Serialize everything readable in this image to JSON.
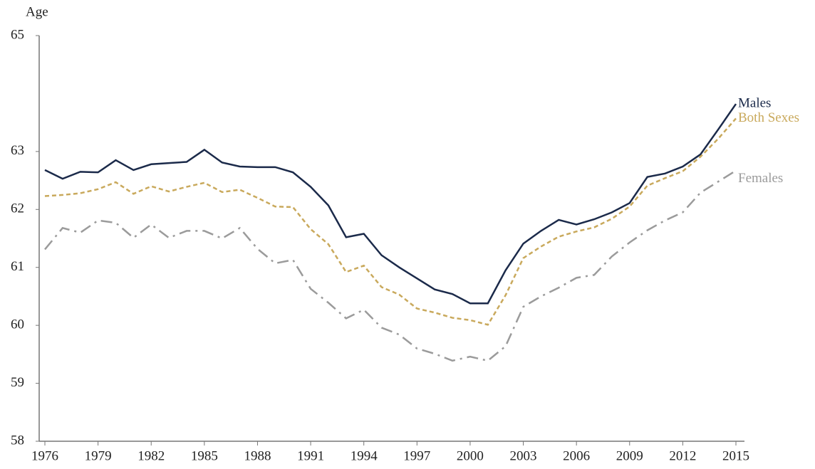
{
  "chart_data": {
    "type": "line",
    "y_label": "Age",
    "x": [
      1976,
      1977,
      1978,
      1979,
      1980,
      1981,
      1982,
      1983,
      1984,
      1985,
      1986,
      1987,
      1988,
      1989,
      1990,
      1991,
      1992,
      1993,
      1994,
      1995,
      1996,
      1997,
      1998,
      1999,
      2000,
      2001,
      2002,
      2003,
      2004,
      2005,
      2006,
      2007,
      2008,
      2009,
      2010,
      2011,
      2012,
      2013,
      2014,
      2015
    ],
    "xlim": [
      1976,
      2015
    ],
    "xticks": [
      1976,
      1979,
      1982,
      1985,
      1988,
      1991,
      1994,
      1997,
      2000,
      2003,
      2006,
      2009,
      2012,
      2015
    ],
    "ylim": [
      58,
      65
    ],
    "yticks": [
      58,
      59,
      60,
      61,
      62,
      63,
      65
    ],
    "series": [
      {
        "name": "Males",
        "color": "#1b2a4a",
        "dash": "solid",
        "values": [
          62.68,
          62.53,
          62.65,
          62.64,
          62.85,
          62.68,
          62.78,
          62.8,
          62.82,
          63.03,
          62.81,
          62.74,
          62.73,
          62.73,
          62.64,
          62.39,
          62.07,
          61.52,
          61.58,
          61.21,
          61.0,
          60.81,
          60.62,
          60.54,
          60.38,
          60.38,
          60.95,
          61.41,
          61.63,
          61.82,
          61.74,
          61.83,
          61.95,
          62.11,
          62.56,
          62.62,
          62.74,
          62.95,
          63.38,
          63.82
        ]
      },
      {
        "name": "Both Sexes",
        "color": "#c9a95c",
        "dash": "dash",
        "values": [
          62.23,
          62.25,
          62.28,
          62.35,
          62.47,
          62.27,
          62.4,
          62.31,
          62.39,
          62.46,
          62.3,
          62.34,
          62.2,
          62.05,
          62.04,
          61.66,
          61.4,
          60.92,
          61.03,
          60.66,
          60.53,
          60.29,
          60.22,
          60.13,
          60.09,
          60.01,
          60.52,
          61.16,
          61.36,
          61.53,
          61.62,
          61.69,
          61.84,
          62.05,
          62.41,
          62.54,
          62.66,
          62.91,
          63.22,
          63.57
        ]
      },
      {
        "name": "Females",
        "color": "#9b9b9b",
        "dash": "dashdot",
        "values": [
          61.31,
          61.68,
          61.6,
          61.81,
          61.77,
          61.51,
          61.74,
          61.51,
          61.63,
          61.63,
          61.5,
          61.68,
          61.32,
          61.07,
          61.13,
          60.63,
          60.39,
          60.12,
          60.27,
          59.96,
          59.84,
          59.6,
          59.51,
          59.39,
          59.46,
          59.39,
          59.64,
          60.32,
          60.5,
          60.65,
          60.82,
          60.87,
          61.19,
          61.43,
          61.64,
          61.81,
          61.95,
          62.29,
          62.48,
          62.67
        ]
      }
    ]
  }
}
